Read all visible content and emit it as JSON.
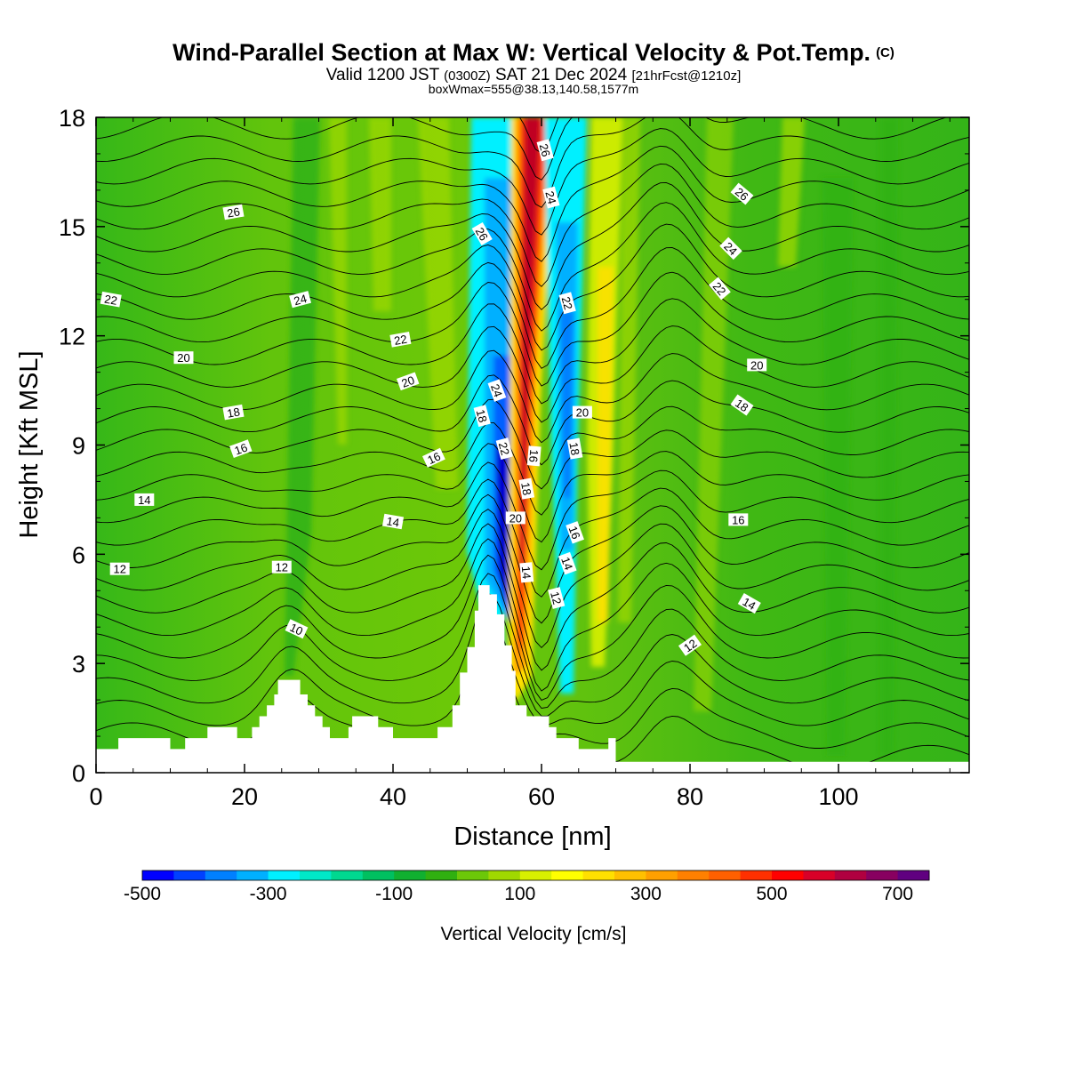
{
  "title": {
    "main": "Wind-Parallel Section at Max W: Vertical Velocity & Pot.Temp.",
    "copyright": "(C)",
    "valid_prefix": "Valid 1200 JST",
    "valid_utc": "(0300Z)",
    "valid_date": "SAT 21 Dec 2024",
    "forecast": "[21hrFcst@1210z]",
    "boxline": "boxWmax=555@38.13,140.58,1577m"
  },
  "chart_data": {
    "type": "heatmap",
    "xlabel": "Distance [nm]",
    "ylabel": "Height [Kft MSL]",
    "xlim": [
      0,
      117.6
    ],
    "ylim": [
      0,
      18
    ],
    "x_ticks": [
      "0",
      "20",
      "40",
      "60",
      "80",
      "100"
    ],
    "y_ticks": [
      "0",
      "3",
      "6",
      "9",
      "12",
      "15",
      "18"
    ],
    "colorbar": {
      "label": "Vertical Velocity [cm/s]",
      "tick_labels": [
        "-500",
        "-300",
        "-100",
        "100",
        "300",
        "500",
        "700"
      ],
      "colors": [
        "#0000ff",
        "#0040ff",
        "#0080ff",
        "#00b0ff",
        "#00f0ff",
        "#00e8c8",
        "#00d890",
        "#00c060",
        "#10b030",
        "#30b010",
        "#6cc808",
        "#a0d800",
        "#d8f000",
        "#ffff00",
        "#ffe000",
        "#ffc000",
        "#ffa000",
        "#ff8000",
        "#ff6000",
        "#ff3000",
        "#ff0000",
        "#d80028",
        "#b00040",
        "#880060",
        "#600080"
      ]
    },
    "terrain": [
      [
        0,
        0.65
      ],
      [
        3,
        0.65
      ],
      [
        3,
        0.95
      ],
      [
        10,
        0.95
      ],
      [
        10,
        0.65
      ],
      [
        12,
        0.65
      ],
      [
        12,
        0.95
      ],
      [
        15,
        0.95
      ],
      [
        15,
        1.25
      ],
      [
        19,
        1.25
      ],
      [
        19,
        0.95
      ],
      [
        21,
        0.95
      ],
      [
        21,
        1.25
      ],
      [
        22,
        1.25
      ],
      [
        22,
        1.55
      ],
      [
        23,
        1.55
      ],
      [
        23,
        1.85
      ],
      [
        24,
        1.85
      ],
      [
        24,
        2.15
      ],
      [
        24.5,
        2.15
      ],
      [
        24.5,
        2.55
      ],
      [
        27.5,
        2.55
      ],
      [
        27.5,
        2.15
      ],
      [
        28.5,
        2.15
      ],
      [
        28.5,
        1.85
      ],
      [
        29.5,
        1.85
      ],
      [
        29.5,
        1.55
      ],
      [
        30.5,
        1.55
      ],
      [
        30.5,
        1.25
      ],
      [
        31.5,
        1.25
      ],
      [
        31.5,
        0.95
      ],
      [
        34,
        0.95
      ],
      [
        34,
        1.25
      ],
      [
        34.5,
        1.25
      ],
      [
        34.5,
        1.55
      ],
      [
        38,
        1.55
      ],
      [
        38,
        1.25
      ],
      [
        40,
        1.25
      ],
      [
        40,
        0.95
      ],
      [
        46,
        0.95
      ],
      [
        46,
        1.25
      ],
      [
        48,
        1.25
      ],
      [
        48,
        1.85
      ],
      [
        49,
        1.85
      ],
      [
        49,
        2.75
      ],
      [
        50,
        2.75
      ],
      [
        50,
        3.45
      ],
      [
        51,
        3.45
      ],
      [
        51,
        4.45
      ],
      [
        51.5,
        4.45
      ],
      [
        51.5,
        5.15
      ],
      [
        53,
        5.15
      ],
      [
        53,
        4.9
      ],
      [
        54,
        4.9
      ],
      [
        54,
        4.35
      ],
      [
        55,
        4.35
      ],
      [
        55,
        3.5
      ],
      [
        56,
        3.5
      ],
      [
        56,
        2.8
      ],
      [
        56.5,
        2.8
      ],
      [
        56.5,
        1.85
      ],
      [
        58,
        1.85
      ],
      [
        58,
        1.55
      ],
      [
        61,
        1.55
      ],
      [
        61,
        1.25
      ],
      [
        62,
        1.25
      ],
      [
        62,
        0.95
      ],
      [
        65,
        0.95
      ],
      [
        65,
        0.65
      ],
      [
        69,
        0.65
      ],
      [
        69,
        0.95
      ],
      [
        70,
        0.95
      ],
      [
        70,
        0.3
      ],
      [
        117.6,
        0.3
      ],
      [
        117.6,
        0
      ]
    ],
    "contour_labels": [
      {
        "x": 2,
        "y": 13.0,
        "text": "22",
        "angle": 10
      },
      {
        "x": 18.5,
        "y": 15.4,
        "text": "26",
        "angle": -10
      },
      {
        "x": 11.8,
        "y": 11.4,
        "text": "20",
        "angle": 0
      },
      {
        "x": 27.5,
        "y": 13.0,
        "text": "24",
        "angle": -15
      },
      {
        "x": 18.5,
        "y": 9.9,
        "text": "18",
        "angle": -10
      },
      {
        "x": 19.5,
        "y": 8.9,
        "text": "16",
        "angle": -20
      },
      {
        "x": 6.5,
        "y": 7.5,
        "text": "14",
        "angle": 0
      },
      {
        "x": 3.2,
        "y": 5.6,
        "text": "12",
        "angle": 0
      },
      {
        "x": 25,
        "y": 5.65,
        "text": "12",
        "angle": 0
      },
      {
        "x": 27,
        "y": 3.95,
        "text": "10",
        "angle": 25
      },
      {
        "x": 41,
        "y": 11.9,
        "text": "22",
        "angle": -10
      },
      {
        "x": 42,
        "y": 10.75,
        "text": "20",
        "angle": -20
      },
      {
        "x": 45.5,
        "y": 8.65,
        "text": "16",
        "angle": -25
      },
      {
        "x": 40,
        "y": 6.9,
        "text": "14",
        "angle": 10
      },
      {
        "x": 52,
        "y": 14.8,
        "text": "26",
        "angle": 60
      },
      {
        "x": 54,
        "y": 10.5,
        "text": "24",
        "angle": 70
      },
      {
        "x": 52,
        "y": 9.8,
        "text": "18",
        "angle": 75
      },
      {
        "x": 55,
        "y": 8.9,
        "text": "22",
        "angle": 75
      },
      {
        "x": 56.5,
        "y": 7.0,
        "text": "20",
        "angle": 0
      },
      {
        "x": 58,
        "y": 7.8,
        "text": "18",
        "angle": 80
      },
      {
        "x": 58,
        "y": 5.5,
        "text": "14",
        "angle": 85
      },
      {
        "x": 59,
        "y": 8.7,
        "text": "16",
        "angle": 95
      },
      {
        "x": 60.5,
        "y": 17.1,
        "text": "26",
        "angle": 75
      },
      {
        "x": 61.3,
        "y": 15.8,
        "text": "24",
        "angle": 75
      },
      {
        "x": 63.5,
        "y": 12.9,
        "text": "22",
        "angle": 75
      },
      {
        "x": 65.5,
        "y": 9.9,
        "text": "20",
        "angle": 0
      },
      {
        "x": 64.5,
        "y": 8.9,
        "text": "18",
        "angle": 80
      },
      {
        "x": 64.5,
        "y": 6.6,
        "text": "16",
        "angle": 70
      },
      {
        "x": 63.5,
        "y": 5.75,
        "text": "14",
        "angle": 70
      },
      {
        "x": 62,
        "y": 4.8,
        "text": "12",
        "angle": 75
      },
      {
        "x": 87,
        "y": 15.9,
        "text": "26",
        "angle": 40
      },
      {
        "x": 85.5,
        "y": 14.4,
        "text": "24",
        "angle": 45
      },
      {
        "x": 84,
        "y": 13.3,
        "text": "22",
        "angle": 50
      },
      {
        "x": 89,
        "y": 11.2,
        "text": "20",
        "angle": 0
      },
      {
        "x": 87,
        "y": 10.1,
        "text": "18",
        "angle": 35
      },
      {
        "x": 86.5,
        "y": 6.95,
        "text": "16",
        "angle": 0
      },
      {
        "x": 88,
        "y": 4.65,
        "text": "14",
        "angle": 30
      },
      {
        "x": 80,
        "y": 3.5,
        "text": "12",
        "angle": -35
      }
    ]
  }
}
